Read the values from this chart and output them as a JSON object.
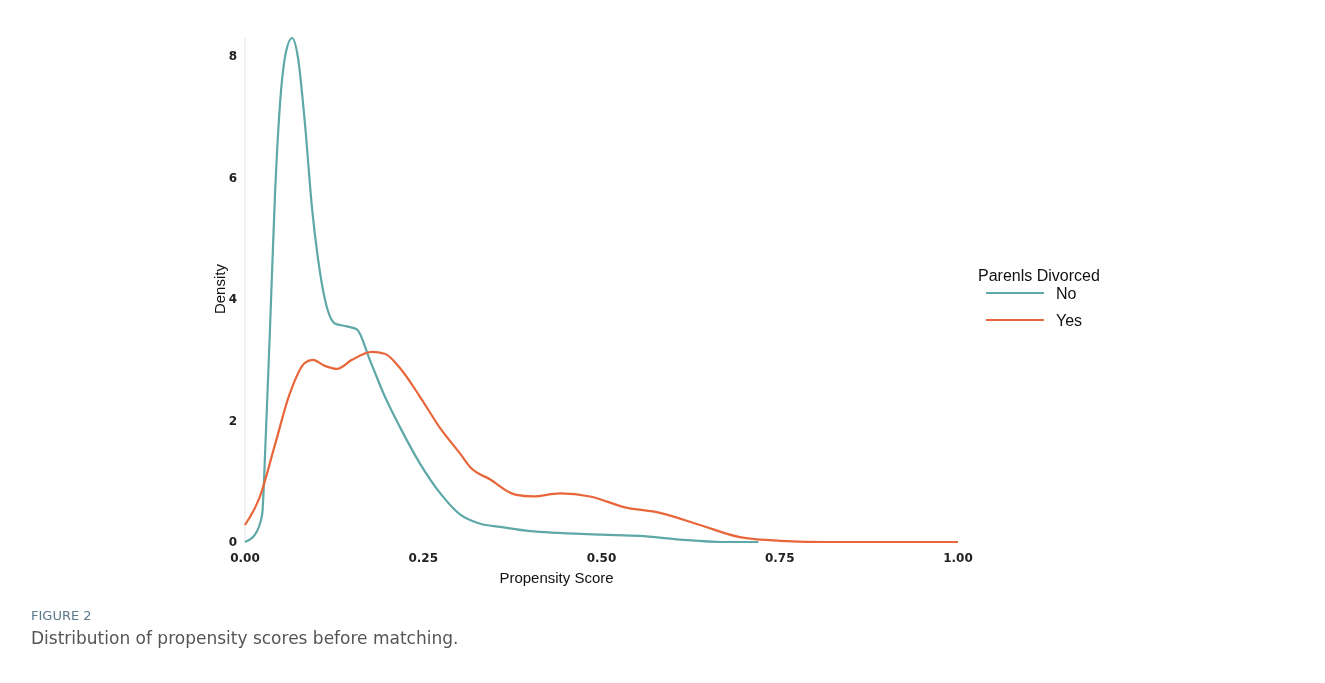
{
  "chart_data": {
    "type": "line",
    "xlabel": "Propensity Score",
    "ylabel": "Density",
    "legend_title": "Parenls Divorced",
    "xlim": [
      0,
      1
    ],
    "ylim": [
      0,
      8.3
    ],
    "xticks": [
      {
        "value": 0,
        "label": "0.00"
      },
      0.25,
      {
        "value": 0.5,
        "label": "0.50"
      },
      0.75,
      {
        "value": 1,
        "label": "1.00"
      }
    ],
    "yticks": [
      0,
      2,
      4,
      6,
      8
    ],
    "grid": false,
    "legend": "right",
    "marker": "none",
    "line_style": "solid",
    "series": [
      {
        "name": "No",
        "color": "#5fa8a8",
        "x": [
          0,
          0.014,
          0.024,
          0.029,
          0.035,
          0.042,
          0.049,
          0.058,
          0.066,
          0.074,
          0.084,
          0.094,
          0.102,
          0.112,
          0.126,
          0.143,
          0.157,
          0.175,
          0.196,
          0.217,
          0.245,
          0.274,
          0.302,
          0.33,
          0.358,
          0.4,
          0.44,
          0.5,
          0.554,
          0.61,
          0.67,
          0.72
        ],
        "values": [
          0,
          0.12,
          0.45,
          1.7,
          3.5,
          5.7,
          7.2,
          8.1,
          8.3,
          8.0,
          6.9,
          5.5,
          4.7,
          4.0,
          3.6,
          3.55,
          3.5,
          3.0,
          2.4,
          1.9,
          1.3,
          0.8,
          0.45,
          0.3,
          0.25,
          0.18,
          0.15,
          0.12,
          0.1,
          0.04,
          0,
          0
        ]
      },
      {
        "name": "Yes",
        "color": "#e8663a",
        "x": [
          0,
          0.021,
          0.042,
          0.063,
          0.084,
          0.095,
          0.112,
          0.129,
          0.15,
          0.178,
          0.196,
          0.217,
          0.245,
          0.274,
          0.302,
          0.316,
          0.344,
          0.379,
          0.404,
          0.442,
          0.484,
          0.533,
          0.582,
          0.638,
          0.694,
          0.75,
          0.82,
          1.0
        ],
        "values": [
          0.28,
          0.75,
          1.6,
          2.45,
          2.95,
          3.0,
          2.9,
          2.85,
          3.0,
          3.13,
          3.1,
          2.87,
          2.4,
          1.87,
          1.45,
          1.23,
          1.03,
          0.78,
          0.75,
          0.8,
          0.75,
          0.57,
          0.48,
          0.28,
          0.08,
          0.02,
          0,
          0
        ]
      }
    ],
    "annotations": [
      "FIGURE 2",
      "Distribution of propensity scores before matching."
    ]
  }
}
